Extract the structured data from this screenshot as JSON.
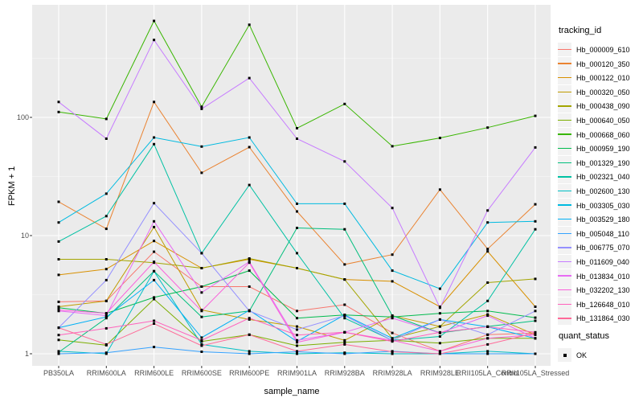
{
  "chart_data": {
    "type": "line",
    "xlabel": "sample_name",
    "ylabel": "FPKM + 1",
    "y_scale": "log10",
    "y_ticks": [
      1,
      10,
      100
    ],
    "ylim": [
      1,
      891
    ],
    "grid": true,
    "panel_bg": "#EBEBEB",
    "grid_major_color": "#FFFFFF",
    "grid_minor_color": "#FFFFFF",
    "point_color": "#000000",
    "tick_label_color": "#4D4D4D",
    "x_categories": [
      "PB350LA",
      "RRIM600LA",
      "RRIM600LE",
      "RRIM600SE",
      "RRIM600PE",
      "RRIM901LA",
      "RRIM928BA",
      "RRIM928LA",
      "RRIM928LE",
      "RRII105LA_Control",
      "RRII105LA_Stressed"
    ],
    "series": [
      {
        "name": "Hb_000009_610",
        "color": "#F8766D",
        "values": [
          2.75,
          2.8,
          7.3,
          3.7,
          3.7,
          2.3,
          2.6,
          1.5,
          1.05,
          1.45,
          1.5
        ]
      },
      {
        "name": "Hb_000120_350",
        "color": "#EA8331",
        "values": [
          19.3,
          11.4,
          135,
          34,
          56,
          16,
          5.7,
          6.9,
          24.5,
          7.7,
          18.4
        ]
      },
      {
        "name": "Hb_000122_010",
        "color": "#D89000",
        "values": [
          4.65,
          5.2,
          9.0,
          5.3,
          6.3,
          5.3,
          4.25,
          4.1,
          2.5,
          7.35,
          2.5
        ]
      },
      {
        "name": "Hb_000320_050",
        "color": "#C09B00",
        "values": [
          2.5,
          2.8,
          11.8,
          2.35,
          1.95,
          1.7,
          1.3,
          2.1,
          1.7,
          2.15,
          1.45
        ]
      },
      {
        "name": "Hb_000438_090",
        "color": "#A3A500",
        "values": [
          6.3,
          6.3,
          5.9,
          5.3,
          6.4,
          5.3,
          4.25,
          1.35,
          1.7,
          4.0,
          4.3
        ]
      },
      {
        "name": "Hb_000640_050",
        "color": "#7CAE00",
        "values": [
          1.31,
          1.18,
          2.9,
          1.27,
          1.45,
          1.17,
          1.25,
          1.3,
          1.23,
          1.35,
          1.35
        ]
      },
      {
        "name": "Hb_000668_060",
        "color": "#39B600",
        "values": [
          111,
          97,
          655,
          123,
          608,
          81,
          130,
          57,
          67,
          82,
          103
        ]
      },
      {
        "name": "Hb_000959_190",
        "color": "#00BB4E",
        "values": [
          2.45,
          2.2,
          3.0,
          3.7,
          5.05,
          2.0,
          2.13,
          2.05,
          2.2,
          2.3,
          2.02
        ]
      },
      {
        "name": "Hb_001329_190",
        "color": "#00BF7D",
        "values": [
          1.03,
          2.0,
          5.0,
          2.05,
          2.3,
          11.6,
          11.3,
          2.1,
          1.5,
          1.7,
          1.9
        ]
      },
      {
        "name": "Hb_002321_040",
        "color": "#00C1A3",
        "values": [
          8.9,
          14.6,
          59.4,
          7.1,
          26.8,
          7.1,
          2.0,
          1.3,
          1.4,
          2.8,
          11.3
        ]
      },
      {
        "name": "Hb_002600_130",
        "color": "#00BFC4",
        "values": [
          1.05,
          1.0,
          5.0,
          1.2,
          1.05,
          1.0,
          1.02,
          1.0,
          1.0,
          1.05,
          1.0
        ]
      },
      {
        "name": "Hb_003305_030",
        "color": "#00BAE0",
        "values": [
          12.9,
          22.6,
          67.6,
          56.6,
          67.6,
          18.6,
          18.6,
          5.05,
          3.55,
          12.9,
          13.2
        ]
      },
      {
        "name": "Hb_003529_180",
        "color": "#00B0F6",
        "values": [
          1.66,
          2.05,
          4.2,
          1.37,
          2.33,
          1.27,
          2.13,
          1.35,
          1.95,
          1.69,
          1.35
        ]
      },
      {
        "name": "Hb_005048_110",
        "color": "#35A2FF",
        "values": [
          1.0,
          1.02,
          1.14,
          1.04,
          1.0,
          1.04,
          1.0,
          1.05,
          1.0,
          1.0,
          1.0
        ]
      },
      {
        "name": "Hb_006775_070",
        "color": "#9590FF",
        "values": [
          1.66,
          4.2,
          18.8,
          7.1,
          2.3,
          1.6,
          2.1,
          1.3,
          1.95,
          1.45,
          2.3
        ]
      },
      {
        "name": "Hb_011609_040",
        "color": "#C77CFF",
        "values": [
          135,
          66,
          452,
          118,
          215,
          66,
          42.4,
          17.1,
          2.45,
          16.3,
          55.7
        ]
      },
      {
        "name": "Hb_013834_010",
        "color": "#E76BF3",
        "values": [
          2.3,
          2.1,
          13.2,
          3.3,
          6.0,
          1.3,
          1.52,
          2.0,
          1.5,
          2.1,
          1.35
        ]
      },
      {
        "name": "Hb_032202_130",
        "color": "#FA62DB",
        "values": [
          2.35,
          2.2,
          6.0,
          2.3,
          5.9,
          1.25,
          1.52,
          1.3,
          1.05,
          1.35,
          1.45
        ]
      },
      {
        "name": "Hb_126648_010",
        "color": "#FF62BC",
        "values": [
          1.44,
          1.64,
          1.9,
          1.3,
          2.0,
          1.44,
          1.52,
          1.27,
          1.52,
          1.69,
          1.52
        ]
      },
      {
        "name": "Hb_131864_030",
        "color": "#FF6A98",
        "values": [
          1.66,
          1.2,
          1.8,
          1.17,
          1.45,
          1.05,
          1.2,
          1.04,
          1.0,
          1.2,
          1.5
        ]
      }
    ],
    "legend": {
      "tracking_title": "tracking_id",
      "quant_title": "quant_status",
      "quant_items": [
        {
          "label": "OK"
        }
      ]
    }
  }
}
